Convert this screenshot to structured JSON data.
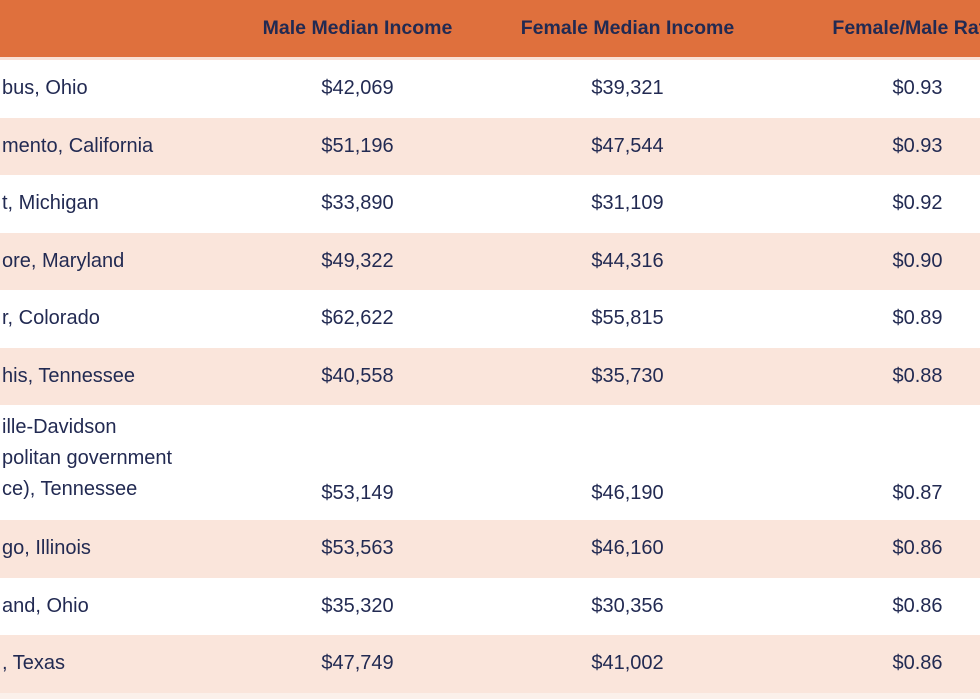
{
  "table": {
    "columns": [
      {
        "label": ""
      },
      {
        "label": "Male Median Income"
      },
      {
        "label": "Female Median Income"
      },
      {
        "label": "Female/Male Ratio"
      }
    ],
    "rows": [
      {
        "city": "bus, Ohio",
        "male": "$42,069",
        "female": "$39,321",
        "ratio": "$0.93"
      },
      {
        "city": "mento, California",
        "male": "$51,196",
        "female": "$47,544",
        "ratio": "$0.93"
      },
      {
        "city": "t, Michigan",
        "male": "$33,890",
        "female": "$31,109",
        "ratio": "$0.92"
      },
      {
        "city": "ore, Maryland",
        "male": "$49,322",
        "female": "$44,316",
        "ratio": "$0.90"
      },
      {
        "city": "r, Colorado",
        "male": "$62,622",
        "female": "$55,815",
        "ratio": "$0.89"
      },
      {
        "city": "his, Tennessee",
        "male": "$40,558",
        "female": "$35,730",
        "ratio": "$0.88"
      },
      {
        "city": "ille-Davidson\npolitan government\nce), Tennessee",
        "male": "$53,149",
        "female": "$46,190",
        "ratio": "$0.87"
      },
      {
        "city": "go, Illinois",
        "male": "$53,563",
        "female": "$46,160",
        "ratio": "$0.86"
      },
      {
        "city": "and, Ohio",
        "male": "$35,320",
        "female": "$30,356",
        "ratio": "$0.86"
      },
      {
        "city": ", Texas",
        "male": "$47,749",
        "female": "$41,002",
        "ratio": "$0.86"
      }
    ]
  },
  "colors": {
    "header_bg": "#DF703D",
    "text_navy": "#222A52",
    "row_bg": "#FFFFFF",
    "row_alt_bg": "#FAE5DB",
    "header_divider": "#F9E1D6",
    "footer_strip": "#FBF0EA"
  },
  "chart_data": {
    "type": "table",
    "title": "",
    "categories": [
      "bus, Ohio",
      "mento, California",
      "t, Michigan",
      "ore, Maryland",
      "r, Colorado",
      "his, Tennessee",
      "ille-Davidson politan government ce), Tennessee",
      "go, Illinois",
      "and, Ohio",
      ", Texas"
    ],
    "series": [
      {
        "name": "Male Median Income",
        "values": [
          42069,
          51196,
          33890,
          49322,
          62622,
          40558,
          53149,
          53563,
          35320,
          47749
        ]
      },
      {
        "name": "Female Median Income",
        "values": [
          39321,
          47544,
          31109,
          44316,
          55815,
          35730,
          46190,
          46160,
          30356,
          41002
        ]
      },
      {
        "name": "Female/Male Ratio",
        "values": [
          0.93,
          0.93,
          0.92,
          0.9,
          0.89,
          0.88,
          0.87,
          0.86,
          0.86,
          0.86
        ]
      }
    ],
    "layout": {
      "header_position": "top",
      "row_striping": true,
      "clipped_left_edge": true,
      "clipped_right_edge": true
    }
  }
}
